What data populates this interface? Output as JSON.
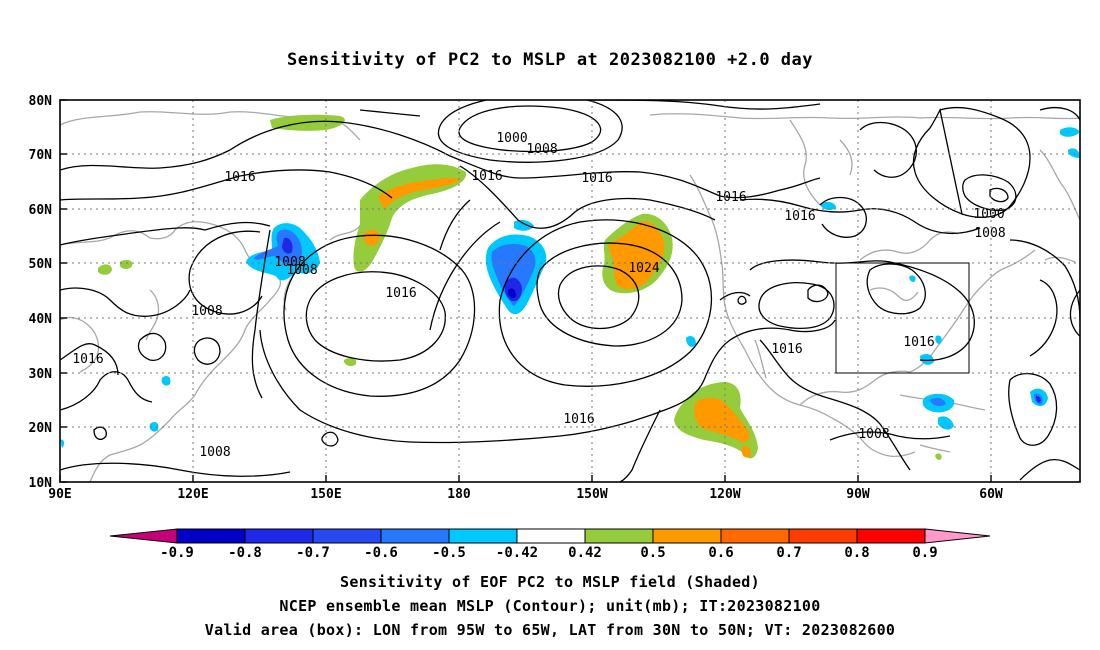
{
  "title": "Sensitivity of PC2 to MSLP at 2023082100 +2.0 day",
  "map": {
    "lat_ticks": [
      "80N",
      "70N",
      "60N",
      "50N",
      "40N",
      "30N",
      "20N",
      "10N"
    ],
    "lon_ticks": [
      "90E",
      "120E",
      "150E",
      "180",
      "150W",
      "120W",
      "90W",
      "60W"
    ],
    "contour_labels": [
      "1000",
      "1008",
      "1016",
      "1016",
      "1016",
      "1016",
      "1008",
      "1008",
      "1008",
      "1016",
      "1016",
      "1024",
      "1016",
      "1016",
      "1016",
      "1016",
      "1008",
      "1000",
      "1008",
      "1008"
    ],
    "valid_box": {
      "lon_west": "95W",
      "lon_east": "65W",
      "lat_south": "30N",
      "lat_north": "50N"
    }
  },
  "colorbar": {
    "labels": [
      "-0.9",
      "-0.8",
      "-0.7",
      "-0.6",
      "-0.5",
      "-0.42",
      "0.42",
      "0.5",
      "0.6",
      "0.7",
      "0.8",
      "0.9"
    ],
    "colors": [
      "#0000c8",
      "#1e28e6",
      "#2848f0",
      "#2878ff",
      "#00c8ff",
      "#ffffff",
      "#94cc3c",
      "#ff9900",
      "#ff6a00",
      "#ff3c00",
      "#ff0000"
    ],
    "min_arrow_color": "#c80078",
    "max_arrow_color": "#ff99cc"
  },
  "footer": {
    "line1": "Sensitivity of EOF PC2 to MSLP field (Shaded)",
    "line2": "NCEP ensemble mean MSLP (Contour); unit(mb); IT:2023082100",
    "line3": "Valid area (box): LON from 95W to 65W, LAT from 30N to 50N; VT: 2023082600"
  }
}
